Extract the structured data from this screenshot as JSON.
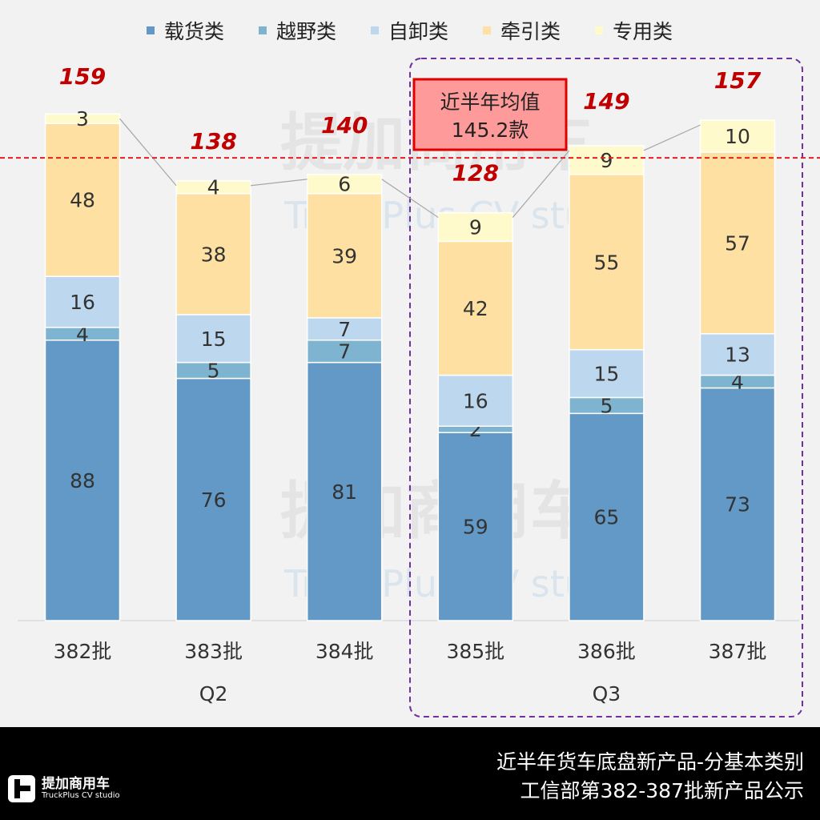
{
  "chart_data": {
    "type": "bar",
    "stacked": true,
    "categories": [
      "382批",
      "383批",
      "384批",
      "385批",
      "386批",
      "387批"
    ],
    "groups": [
      {
        "label": "Q2",
        "categories": [
          "382批",
          "383批",
          "384批"
        ]
      },
      {
        "label": "Q3",
        "categories": [
          "385批",
          "386批",
          "387批"
        ]
      }
    ],
    "series": [
      {
        "name": "载货类",
        "color": "#6399c6",
        "values": [
          88,
          76,
          81,
          59,
          65,
          73
        ]
      },
      {
        "name": "越野类",
        "color": "#7eb4d0",
        "values": [
          4,
          5,
          7,
          2,
          5,
          4
        ]
      },
      {
        "name": "自卸类",
        "color": "#bdd7ee",
        "values": [
          16,
          15,
          7,
          16,
          15,
          13
        ]
      },
      {
        "name": "牵引类",
        "color": "#fde0a2",
        "values": [
          48,
          38,
          39,
          42,
          55,
          57
        ]
      },
      {
        "name": "专用类",
        "color": "#fffacb",
        "values": [
          3,
          4,
          6,
          9,
          9,
          10
        ]
      }
    ],
    "totals": [
      159,
      138,
      140,
      128,
      149,
      157
    ],
    "average": {
      "value": 145.2,
      "label_line1": "近半年均值",
      "label_line2": "145.2款",
      "color": "#e02020"
    },
    "legend": "top",
    "ylim": [
      0,
      165
    ],
    "grid": false
  },
  "footer": {
    "line1": "近半年货车底盘新产品-分基本类别",
    "line2": "工信部第382-387批新产品公示"
  },
  "logo": {
    "name": "提加商用车",
    "sub": "TruckPlus CV studio"
  }
}
